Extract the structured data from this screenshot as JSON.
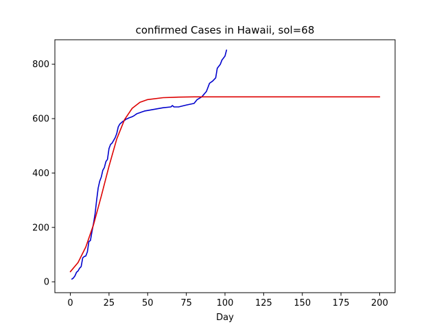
{
  "chart_data": {
    "type": "line",
    "title": "confirmed Cases in Hawaii, sol=68",
    "xlabel": "Day",
    "ylabel": "",
    "xlim": [
      -10,
      210
    ],
    "ylim": [
      -40,
      890
    ],
    "xticks": [
      0,
      25,
      50,
      75,
      100,
      125,
      150,
      175,
      200
    ],
    "yticks": [
      0,
      200,
      400,
      600,
      800
    ],
    "grid": false,
    "legend": "none",
    "series": [
      {
        "color": "#0000cc",
        "kind": "observed",
        "x": [
          1,
          2,
          3,
          4,
          5,
          6,
          7,
          8,
          9,
          10,
          11,
          12,
          13,
          14,
          15,
          16,
          17,
          18,
          19,
          20,
          21,
          22,
          23,
          24,
          25,
          26,
          27,
          28,
          29,
          30,
          31,
          32,
          33,
          34,
          35,
          36,
          37,
          38,
          39,
          40,
          41,
          42,
          43,
          44,
          45,
          46,
          47,
          48,
          49,
          50,
          55,
          60,
          65,
          66,
          67,
          70,
          75,
          80,
          82,
          85,
          88,
          90,
          92,
          94,
          95,
          97,
          98,
          100,
          101
        ],
        "y": [
          10,
          14,
          22,
          35,
          40,
          50,
          56,
          88,
          93,
          95,
          110,
          148,
          152,
          185,
          215,
          250,
          300,
          345,
          370,
          385,
          410,
          420,
          442,
          450,
          490,
          505,
          510,
          520,
          530,
          545,
          570,
          580,
          585,
          590,
          593,
          598,
          600,
          603,
          605,
          607,
          610,
          614,
          618,
          620,
          622,
          624,
          626,
          628,
          629,
          630,
          635,
          640,
          643,
          648,
          643,
          643,
          650,
          656,
          670,
          680,
          700,
          730,
          738,
          750,
          785,
          800,
          815,
          830,
          852
        ]
      },
      {
        "color": "#dd0000",
        "kind": "logistic-fit",
        "x": [
          0,
          5,
          10,
          15,
          20,
          25,
          30,
          35,
          40,
          45,
          50,
          60,
          70,
          80,
          90,
          100,
          125,
          150,
          175,
          200
        ],
        "y": [
          37,
          71,
          128,
          210,
          315,
          425,
          525,
          596,
          638,
          660,
          670,
          677,
          679,
          680,
          680,
          680,
          680,
          680,
          680,
          680
        ]
      }
    ]
  }
}
